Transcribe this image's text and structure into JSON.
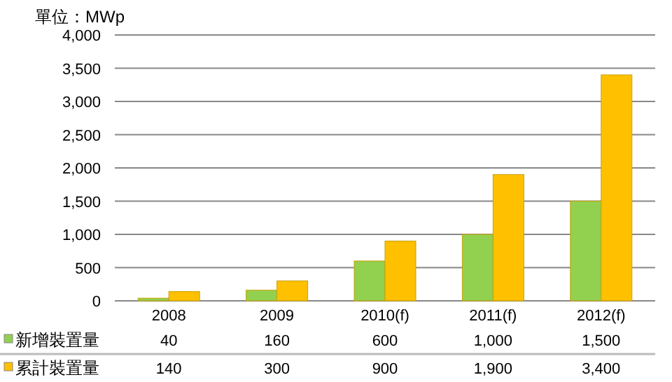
{
  "chart_data": {
    "type": "bar",
    "title": "單位：MWp",
    "categories": [
      "2008",
      "2009",
      "2010(f)",
      "2011(f)",
      "2012(f)"
    ],
    "series": [
      {
        "name": "新增裝置量",
        "color": "#92d050",
        "values": [
          40,
          160,
          600,
          1000,
          1500
        ],
        "value_labels": [
          "40",
          "160",
          "600",
          "1,000",
          "1,500"
        ]
      },
      {
        "name": "累計裝置量",
        "color": "#ffc000",
        "values": [
          140,
          300,
          900,
          1900,
          3400
        ],
        "value_labels": [
          "140",
          "300",
          "900",
          "1,900",
          "3,400"
        ]
      }
    ],
    "ylim": [
      0,
      4000
    ],
    "yticks": [
      0,
      500,
      {
        "value": 1000,
        "label": "1,000"
      },
      {
        "value": 1500,
        "label": "1,500"
      },
      {
        "value": 2000,
        "label": "2,000"
      },
      {
        "value": 2500,
        "label": "2,500"
      },
      {
        "value": 3000,
        "label": "3,000"
      },
      {
        "value": 3500,
        "label": "3,500"
      },
      {
        "value": 4000,
        "label": "4,000"
      }
    ],
    "grid": "y",
    "legend": "bottom left"
  }
}
